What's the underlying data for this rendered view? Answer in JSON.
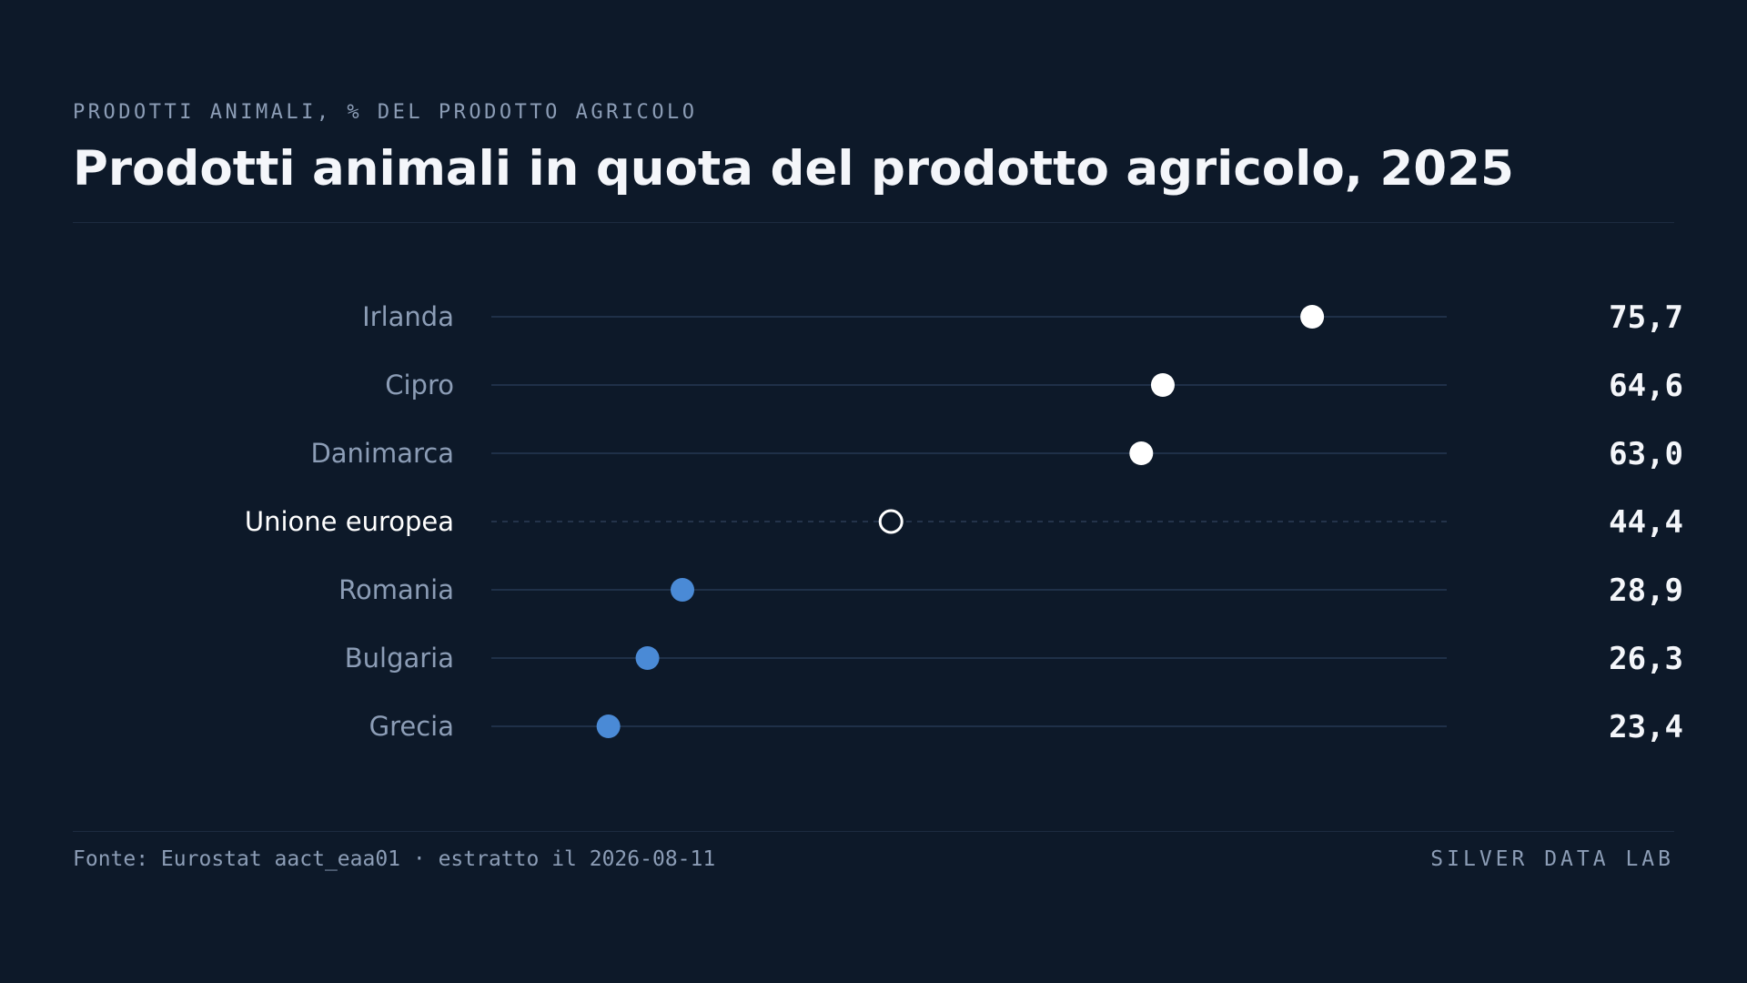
{
  "header": {
    "kicker": "PRODOTTI ANIMALI, % DEL PRODOTTO AGRICOLO",
    "title": "Prodotti animali in quota del prodotto agricolo, 2025"
  },
  "footer": {
    "source": "Fonte: Eurostat aact_eaa01 · estratto il 2026-08-11",
    "brand": "SILVER DATA LAB"
  },
  "colors": {
    "background": "#0d1929",
    "high": "#ffffff",
    "low": "#4a8ad6",
    "reference": "#ffffff",
    "track": "#1f3048",
    "label": "#8c9db6"
  },
  "chart_data": {
    "type": "dot",
    "title": "Prodotti animali in quota del prodotto agricolo, 2025",
    "xlabel": "",
    "ylabel": "",
    "xlim": [
      14.7,
      85.7
    ],
    "grid": false,
    "legend": "none",
    "categories": [
      "Irlanda",
      "Cipro",
      "Danimarca",
      "Unione europea",
      "Romania",
      "Bulgaria",
      "Grecia"
    ],
    "values": [
      75.7,
      64.6,
      63.0,
      44.4,
      28.9,
      26.3,
      23.4
    ],
    "value_labels": [
      "75,7",
      "64,6",
      "63,0",
      "44,4",
      "28,9",
      "26,3",
      "23,4"
    ],
    "point_style": [
      "high",
      "high",
      "high",
      "reference",
      "low",
      "low",
      "low"
    ]
  }
}
